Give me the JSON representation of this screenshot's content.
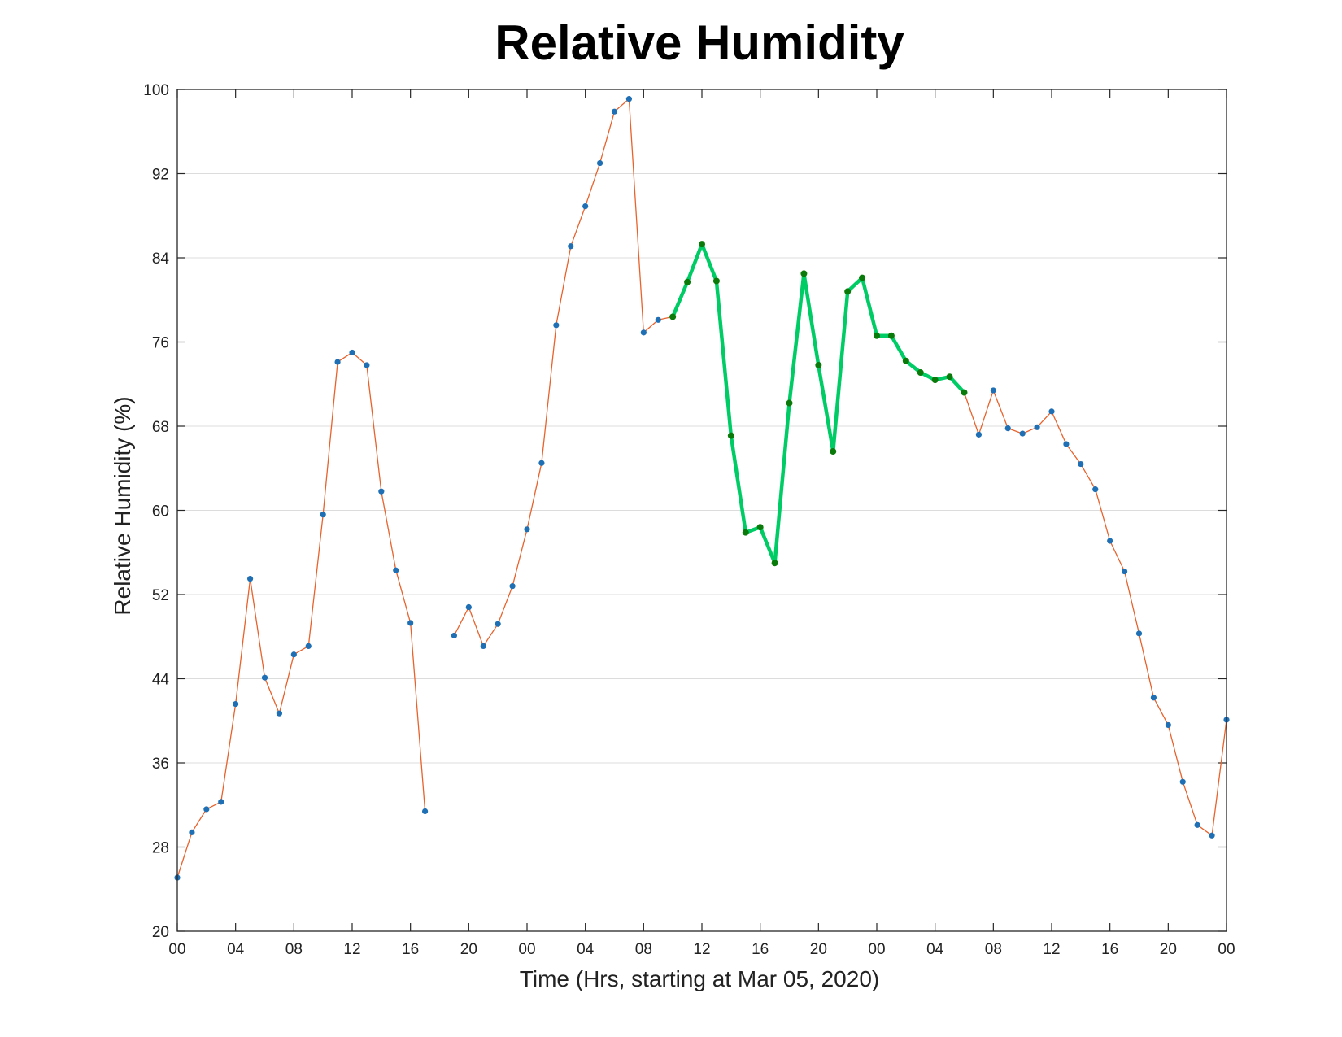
{
  "chart_data": {
    "type": "line",
    "title": "Relative Humidity",
    "xlabel": "Time (Hrs, starting at Mar 05, 2020)",
    "ylabel": "Relative Humidity (%)",
    "ylim": [
      20,
      100
    ],
    "xlim": [
      0,
      72
    ],
    "y_ticks": [
      20,
      28,
      36,
      44,
      52,
      60,
      68,
      76,
      84,
      92,
      100
    ],
    "x_ticks": [
      0,
      4,
      8,
      12,
      16,
      20,
      24,
      28,
      32,
      36,
      40,
      44,
      48,
      52,
      56,
      60,
      64,
      68,
      72
    ],
    "x_tick_labels": [
      "00",
      "04",
      "08",
      "12",
      "16",
      "20",
      "00",
      "04",
      "08",
      "12",
      "16",
      "20",
      "00",
      "04",
      "08",
      "12",
      "16",
      "20",
      "00"
    ],
    "grid": "horizontal",
    "legend": "none",
    "colors": {
      "line": "#e8622c",
      "marker": "#1f6fb4",
      "highlight_line": "#00cc66",
      "highlight_marker": "#0a7a0a"
    },
    "series": [
      {
        "x": [
          0,
          1,
          2,
          3,
          4,
          5,
          6,
          7,
          8,
          9,
          10,
          11,
          12,
          13,
          14,
          15,
          16,
          17,
          18,
          19,
          20,
          21,
          22,
          23,
          24,
          25,
          26,
          27,
          28,
          29,
          30,
          31,
          32,
          33,
          34,
          35,
          36,
          37,
          38,
          39,
          40,
          41,
          42,
          43,
          44,
          45,
          46,
          47,
          48,
          49,
          50,
          51,
          52,
          53,
          54,
          55,
          56,
          57,
          58,
          59,
          60,
          61,
          62,
          63,
          64,
          65,
          66,
          67,
          68,
          69,
          70,
          71,
          72
        ],
        "values": [
          25.1,
          29.4,
          31.6,
          32.3,
          41.6,
          53.5,
          44.1,
          40.7,
          46.3,
          47.1,
          59.6,
          74.1,
          75.0,
          73.8,
          61.8,
          54.3,
          49.3,
          31.4,
          null,
          48.1,
          50.8,
          47.1,
          49.2,
          52.8,
          58.2,
          64.5,
          77.6,
          85.1,
          88.9,
          93.0,
          97.9,
          99.1,
          76.9,
          78.1,
          78.4,
          81.7,
          85.3,
          81.8,
          67.1,
          57.9,
          58.4,
          55.0,
          70.2,
          82.5,
          73.8,
          65.6,
          80.8,
          82.1,
          76.6,
          76.6,
          74.2,
          73.1,
          72.4,
          72.7,
          71.2,
          67.2,
          71.4,
          67.8,
          67.3,
          67.9,
          69.4,
          66.3,
          64.4,
          62.0,
          57.1,
          54.2,
          48.3,
          42.2,
          39.6,
          34.2,
          30.1,
          29.1,
          40.1
        ]
      },
      {
        "x": [
          34,
          35,
          36,
          37,
          38,
          39,
          40,
          41,
          42,
          43,
          44,
          45,
          46,
          47,
          48,
          49,
          50,
          51,
          52,
          53,
          54
        ],
        "values": [
          78.4,
          81.7,
          85.3,
          81.8,
          67.1,
          57.9,
          58.4,
          55.0,
          70.2,
          82.5,
          73.8,
          65.6,
          80.8,
          82.1,
          76.6,
          76.6,
          74.2,
          73.1,
          72.4,
          72.7,
          71.2
        ]
      }
    ]
  }
}
